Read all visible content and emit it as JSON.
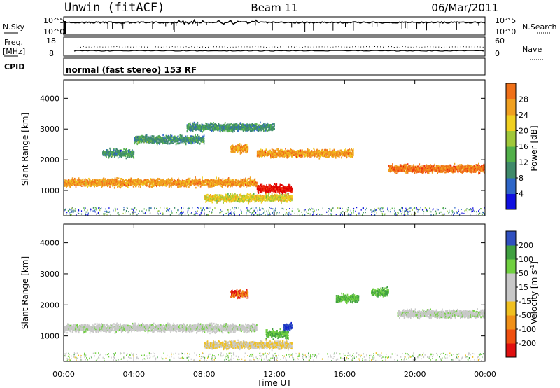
{
  "header": {
    "station": "Unwin (fitACF)",
    "beam": "Beam 11",
    "date": "06/Mar/2011"
  },
  "aux_panels": {
    "nsky_label": "N.Sky",
    "nsky_ticks": [
      "10^5",
      "10^0"
    ],
    "nsearch_label": "N.Search",
    "nsearch_ticks": [
      "10^5",
      "10^0"
    ],
    "freq_label": "Freq.",
    "freq_unit": "[MHz]",
    "freq_ticks": [
      "18",
      "8"
    ],
    "nave_label": "Nave",
    "nave_ticks": [
      "60",
      "0"
    ],
    "cpid_label": "CPID",
    "cpid_text": "normal (fast stereo) 153 RF"
  },
  "colors": {
    "power": [
      "#1010e0",
      "#2e66c8",
      "#3f8a6a",
      "#52b04a",
      "#a0c83a",
      "#f0d020",
      "#f0a020",
      "#f07018",
      "#f03010",
      "#e00000"
    ],
    "velocity": [
      "#e01010",
      "#f05010",
      "#f09018",
      "#f0c020",
      "#c8c8c8",
      "#c8c8c8",
      "#70d040",
      "#40a040",
      "#3050c0",
      "#1020d0"
    ]
  },
  "chart_data": [
    {
      "type": "heatmap",
      "title": "",
      "xlabel": "",
      "ylabel": "Slant Range [km]",
      "xlim": [
        "00:00",
        "24:00"
      ],
      "ylim": [
        180,
        4600
      ],
      "yticks": [
        1000,
        2000,
        3000,
        4000
      ],
      "colorbar": {
        "label": "Power [dB]",
        "ticks": [
          4,
          8,
          12,
          16,
          20,
          24,
          28
        ],
        "range": [
          0,
          30
        ]
      },
      "scatter_bands": [
        {
          "from_hour": 2.2,
          "to_hour": 4.0,
          "range_km": 2200,
          "dB": 8
        },
        {
          "from_hour": 4.0,
          "to_hour": 8.0,
          "range_km": 2650,
          "dB": 8
        },
        {
          "from_hour": 7.0,
          "to_hour": 12.0,
          "range_km": 3050,
          "dB": 8
        },
        {
          "from_hour": 9.5,
          "to_hour": 10.5,
          "range_km": 2350,
          "dB": 20
        },
        {
          "from_hour": 11.0,
          "to_hour": 13.0,
          "range_km": 1050,
          "dB": 28
        },
        {
          "from_hour": 8.0,
          "to_hour": 13.0,
          "range_km": 750,
          "dB": 16
        },
        {
          "from_hour": 0.0,
          "to_hour": 11.0,
          "range_km": 1250,
          "dB": 20
        },
        {
          "from_hour": 11.0,
          "to_hour": 16.5,
          "range_km": 2200,
          "dB": 20
        },
        {
          "from_hour": 18.5,
          "to_hour": 24.0,
          "range_km": 1700,
          "dB": 22
        }
      ]
    },
    {
      "type": "heatmap",
      "title": "",
      "xlabel": "Time UT",
      "ylabel": "Slant Range [km]",
      "xlim": [
        "00:00",
        "24:00"
      ],
      "ylim": [
        180,
        4600
      ],
      "xticks": [
        "00:00",
        "04:00",
        "08:00",
        "12:00",
        "16:00",
        "20:00",
        "00:00"
      ],
      "yticks": [
        1000,
        2000,
        3000,
        4000
      ],
      "colorbar": {
        "label": "Velocity [m s^-1]",
        "ticks": [
          -200,
          -100,
          -50,
          -15,
          15,
          50,
          100,
          200
        ],
        "range": [
          -250,
          250
        ]
      },
      "scatter_bands": [
        {
          "from_hour": 0.0,
          "to_hour": 11.0,
          "range_km": 1250,
          "velocity": 0
        },
        {
          "from_hour": 9.5,
          "to_hour": 10.5,
          "range_km": 2350,
          "velocity": -200
        },
        {
          "from_hour": 12.5,
          "to_hour": 13.0,
          "range_km": 1300,
          "velocity": 200
        },
        {
          "from_hour": 11.5,
          "to_hour": 12.8,
          "range_km": 1050,
          "velocity": 50
        },
        {
          "from_hour": 15.5,
          "to_hour": 16.8,
          "range_km": 2200,
          "velocity": 50
        },
        {
          "from_hour": 17.5,
          "to_hour": 18.5,
          "range_km": 2400,
          "velocity": 50
        },
        {
          "from_hour": 8.0,
          "to_hour": 13.0,
          "range_km": 700,
          "velocity": -50
        },
        {
          "from_hour": 19.0,
          "to_hour": 24.0,
          "range_km": 1700,
          "velocity": 0
        }
      ]
    }
  ]
}
